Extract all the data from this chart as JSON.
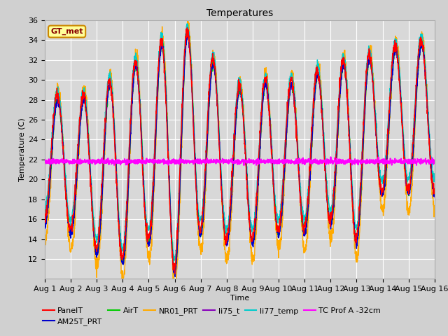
{
  "title": "Temperatures",
  "xlabel": "Time",
  "ylabel": "Temperature (C)",
  "annotation": "GT_met",
  "ylim": [
    10,
    36
  ],
  "yticks": [
    12,
    14,
    16,
    18,
    20,
    22,
    24,
    26,
    28,
    30,
    32,
    34,
    36
  ],
  "n_days": 15,
  "series_colors": {
    "PanelT": "#ff0000",
    "AM25T_PRT": "#0000cc",
    "AirT": "#00cc00",
    "NR01_PRT": "#ffaa00",
    "li75_t": "#8800bb",
    "li77_temp": "#00cccc",
    "TC Prof A -32cm": "#ff00ff"
  },
  "fig_bg": "#d0d0d0",
  "plot_bg": "#d8d8d8",
  "grid_color": "#ffffff",
  "title_fontsize": 10,
  "axis_fontsize": 8,
  "tick_fontsize": 8,
  "legend_fontsize": 8,
  "annotation_fontsize": 8,
  "base_mins": [
    16,
    15,
    13,
    12,
    14,
    11,
    15,
    14,
    14,
    15,
    15,
    16,
    14,
    19,
    19
  ],
  "base_maxs": [
    29,
    28,
    29,
    31,
    33,
    35,
    35,
    29,
    30,
    30,
    30,
    32,
    32,
    33,
    34
  ],
  "tc_mean": 21.8,
  "tc_noise": 0.12,
  "pts_per_day": 144
}
